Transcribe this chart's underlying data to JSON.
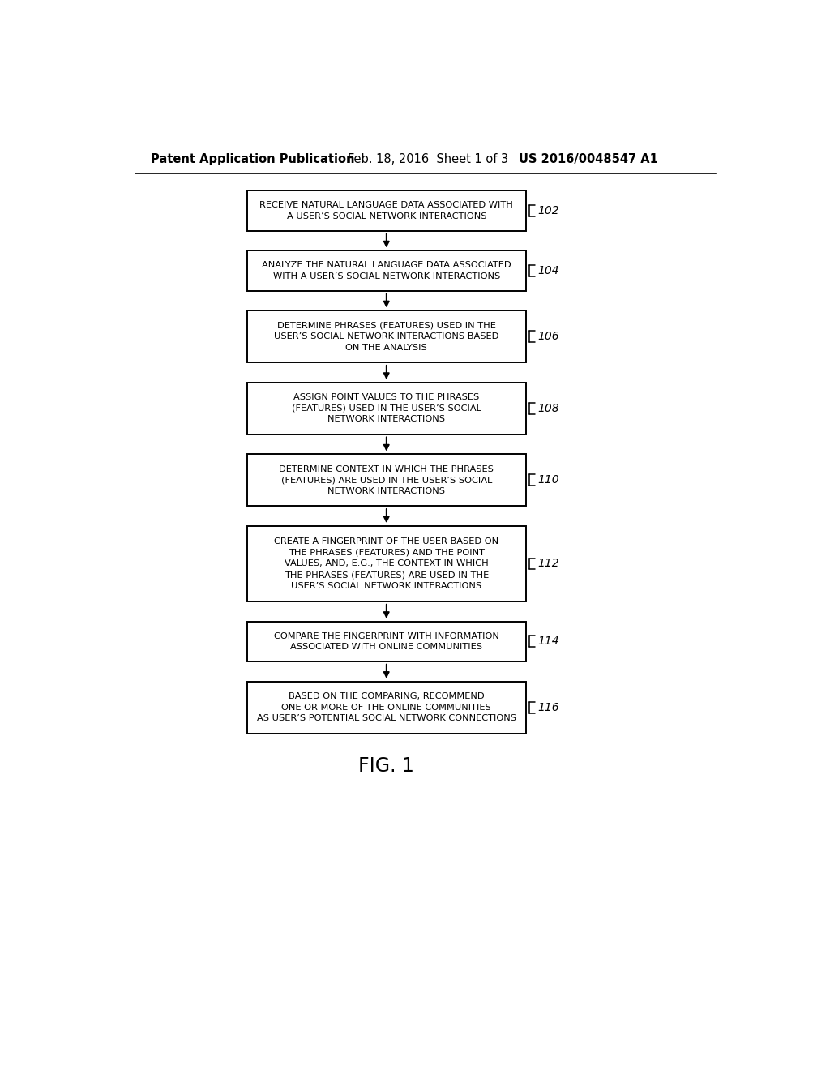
{
  "background_color": "#ffffff",
  "header_left": "Patent Application Publication",
  "header_mid": "Feb. 18, 2016  Sheet 1 of 3",
  "header_right": "US 2016/0048547 A1",
  "footer_label": "FIG. 1",
  "boxes": [
    {
      "id": "102",
      "label": "RECEIVE NATURAL LANGUAGE DATA ASSOCIATED WITH\nA USER’S SOCIAL NETWORK INTERACTIONS",
      "nlines": 2
    },
    {
      "id": "104",
      "label": "ANALYZE THE NATURAL LANGUAGE DATA ASSOCIATED\nWITH A USER’S SOCIAL NETWORK INTERACTIONS",
      "nlines": 2
    },
    {
      "id": "106",
      "label": "DETERMINE PHRASES (FEATURES) USED IN THE\nUSER’S SOCIAL NETWORK INTERACTIONS BASED\nON THE ANALYSIS",
      "nlines": 3
    },
    {
      "id": "108",
      "label": "ASSIGN POINT VALUES TO THE PHRASES\n(FEATURES) USED IN THE USER’S SOCIAL\nNETWORK INTERACTIONS",
      "nlines": 3
    },
    {
      "id": "110",
      "label": "DETERMINE CONTEXT IN WHICH THE PHRASES\n(FEATURES) ARE USED IN THE USER’S SOCIAL\nNETWORK INTERACTIONS",
      "nlines": 3
    },
    {
      "id": "112",
      "label": "CREATE A FINGERPRINT OF THE USER BASED ON\nTHE PHRASES (FEATURES) AND THE POINT\nVALUES, AND, E.G., THE CONTEXT IN WHICH\nTHE PHRASES (FEATURES) ARE USED IN THE\nUSER’S SOCIAL NETWORK INTERACTIONS",
      "nlines": 5
    },
    {
      "id": "114",
      "label": "COMPARE THE FINGERPRINT WITH INFORMATION\nASSOCIATED WITH ONLINE COMMUNITIES",
      "nlines": 2
    },
    {
      "id": "116",
      "label": "BASED ON THE COMPARING, RECOMMEND\nONE OR MORE OF THE ONLINE COMMUNITIES\nAS USER’S POTENTIAL SOCIAL NETWORK CONNECTIONS",
      "nlines": 3
    }
  ]
}
